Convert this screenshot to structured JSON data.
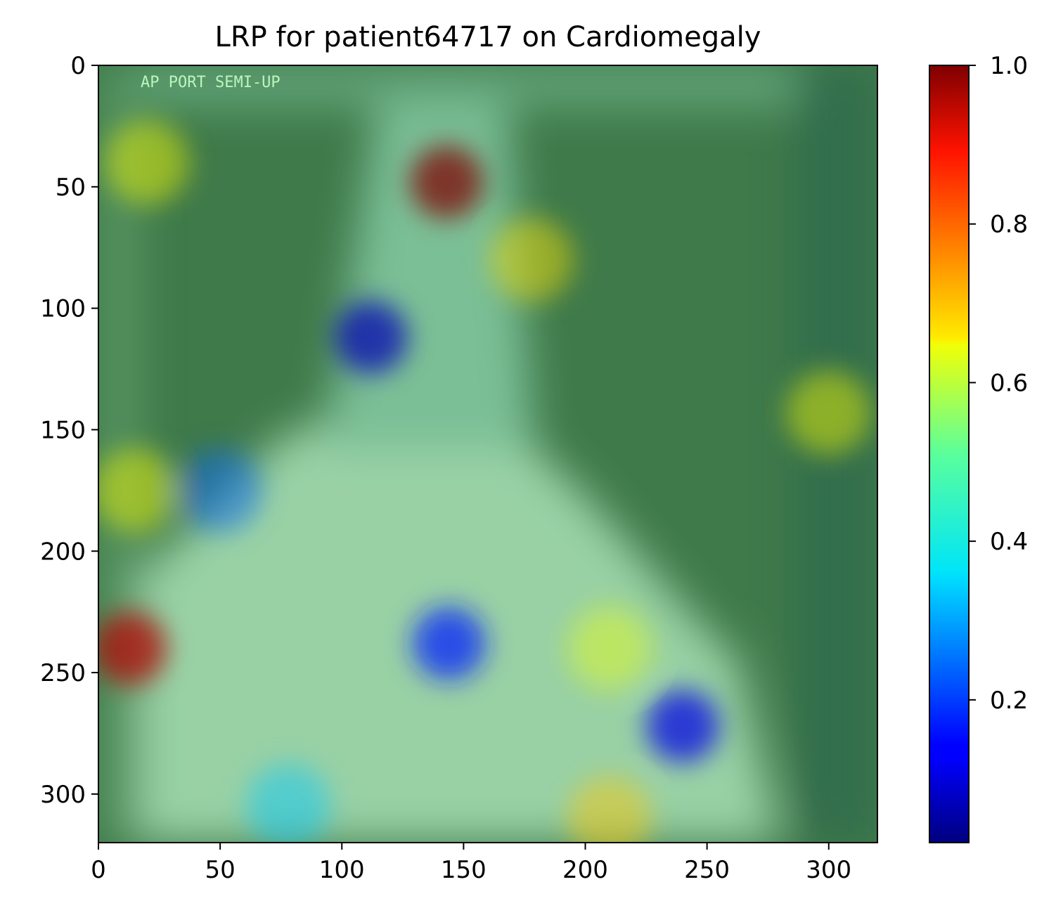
{
  "chart_data": [
    {
      "type": "heatmap",
      "title": "LRP for patient64717 on Cardiomegaly",
      "xlabel": "",
      "ylabel": "",
      "xlim": [
        0,
        320
      ],
      "ylim": [
        320,
        0
      ],
      "x_ticks": [
        "0",
        "50",
        "100",
        "150",
        "200",
        "250",
        "300"
      ],
      "x_tick_values": [
        0,
        50,
        100,
        150,
        200,
        250,
        300
      ],
      "y_ticks": [
        "0",
        "50",
        "100",
        "150",
        "200",
        "250",
        "300"
      ],
      "y_tick_values": [
        0,
        50,
        100,
        150,
        200,
        250,
        300
      ],
      "background_value": 0.45,
      "hotspots": [
        {
          "x": 143,
          "y": 48,
          "value": 1.0
        },
        {
          "x": 13,
          "y": 240,
          "value": 0.95
        },
        {
          "x": 112,
          "y": 112,
          "value": 0.05
        },
        {
          "x": 144,
          "y": 238,
          "value": 0.15
        },
        {
          "x": 240,
          "y": 272,
          "value": 0.1
        },
        {
          "x": 50,
          "y": 175,
          "value": 0.22
        },
        {
          "x": 78,
          "y": 305,
          "value": 0.32
        },
        {
          "x": 178,
          "y": 80,
          "value": 0.65
        },
        {
          "x": 300,
          "y": 143,
          "value": 0.62
        },
        {
          "x": 210,
          "y": 310,
          "value": 0.68
        },
        {
          "x": 20,
          "y": 40,
          "value": 0.62
        },
        {
          "x": 15,
          "y": 175,
          "value": 0.62
        },
        {
          "x": 210,
          "y": 240,
          "value": 0.6
        }
      ],
      "overlay_text": "AP PORT SEMI-UP",
      "colormap": "jet",
      "colorbar": {
        "range": [
          0.02,
          1.0
        ],
        "ticks": [
          "0.2",
          "0.4",
          "0.6",
          "0.8",
          "1.0"
        ],
        "tick_values": [
          0.2,
          0.4,
          0.6,
          0.8,
          1.0
        ]
      }
    }
  ]
}
